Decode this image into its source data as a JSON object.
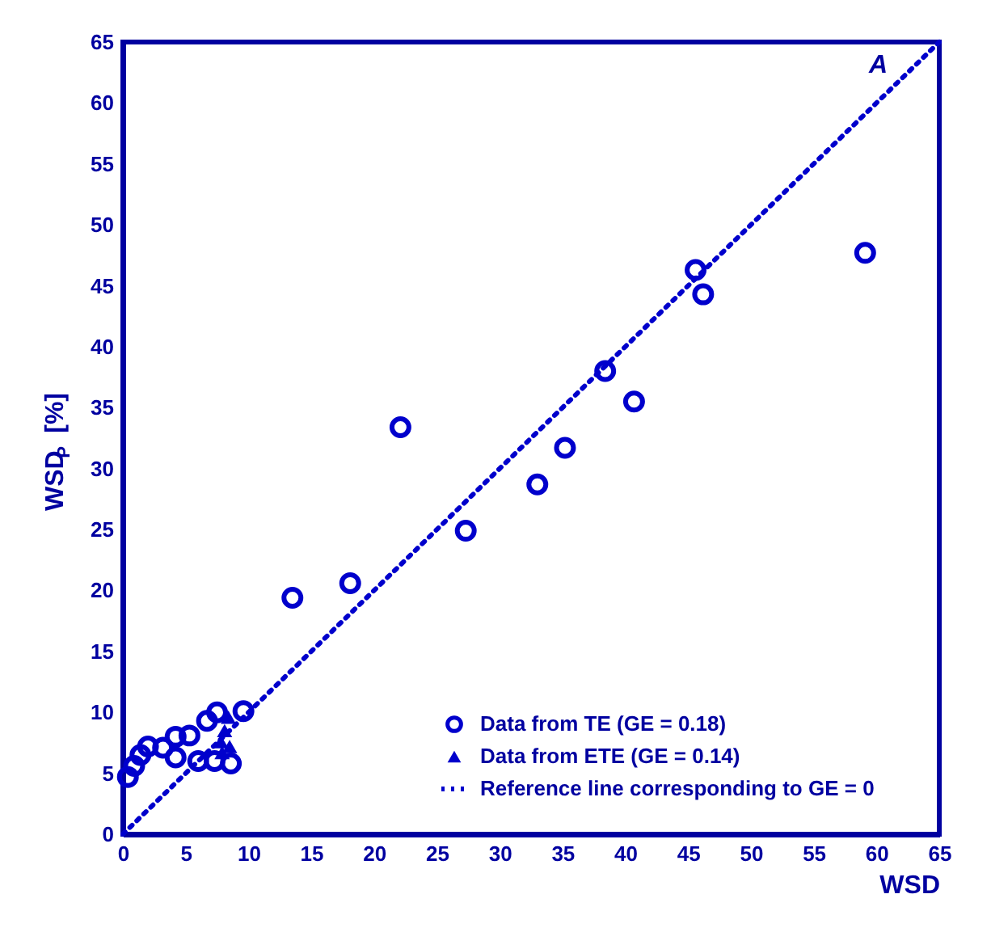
{
  "chart_data": {
    "type": "scatter",
    "xlabel": "WSD",
    "ylabel": "WSD$_{P}$ [%]",
    "xlim": [
      0,
      65
    ],
    "ylim": [
      0,
      65
    ],
    "xticks": [
      0,
      5,
      10,
      15,
      20,
      25,
      30,
      35,
      40,
      45,
      50,
      55,
      60,
      65
    ],
    "yticks": [
      0,
      5,
      10,
      15,
      20,
      25,
      30,
      35,
      40,
      45,
      50,
      55,
      60,
      65
    ],
    "grid": false,
    "legend": "bottom right",
    "annotations": [
      "A"
    ],
    "series": [
      {
        "name": "Data from TE (GE = 0.18)",
        "color": "#0000cc",
        "marker": "circle",
        "x": [
          0.4,
          0.9,
          1.4,
          2.0,
          3.2,
          4.2,
          4.2,
          5.3,
          6.0,
          6.7,
          7.3,
          7.5,
          8.6,
          9.6,
          13.5,
          18.1,
          22.1,
          27.3,
          33.0,
          35.2,
          38.4,
          40.7,
          45.6,
          46.2,
          59.1
        ],
        "values": [
          4.7,
          5.6,
          6.5,
          7.2,
          7.1,
          8.0,
          6.3,
          8.1,
          6.0,
          9.3,
          6.0,
          10.0,
          5.8,
          10.1,
          19.4,
          20.6,
          33.4,
          24.9,
          28.7,
          31.7,
          38.0,
          35.5,
          46.3,
          44.3,
          47.7
        ]
      },
      {
        "name": "Data from ETE (GE = 0.14)",
        "color": "#0000cc",
        "marker": "triangle",
        "x": [
          7.8,
          8.1,
          8.5,
          7.9,
          8.4
        ],
        "values": [
          7.6,
          8.5,
          7.2,
          6.7,
          9.6
        ]
      },
      {
        "name": "Reference line corresponding to GE = 0",
        "type": "line",
        "color": "#0000cc",
        "line_style": "dotted",
        "marker": "none",
        "x": [
          0,
          65
        ],
        "values": [
          0,
          65
        ]
      }
    ]
  }
}
